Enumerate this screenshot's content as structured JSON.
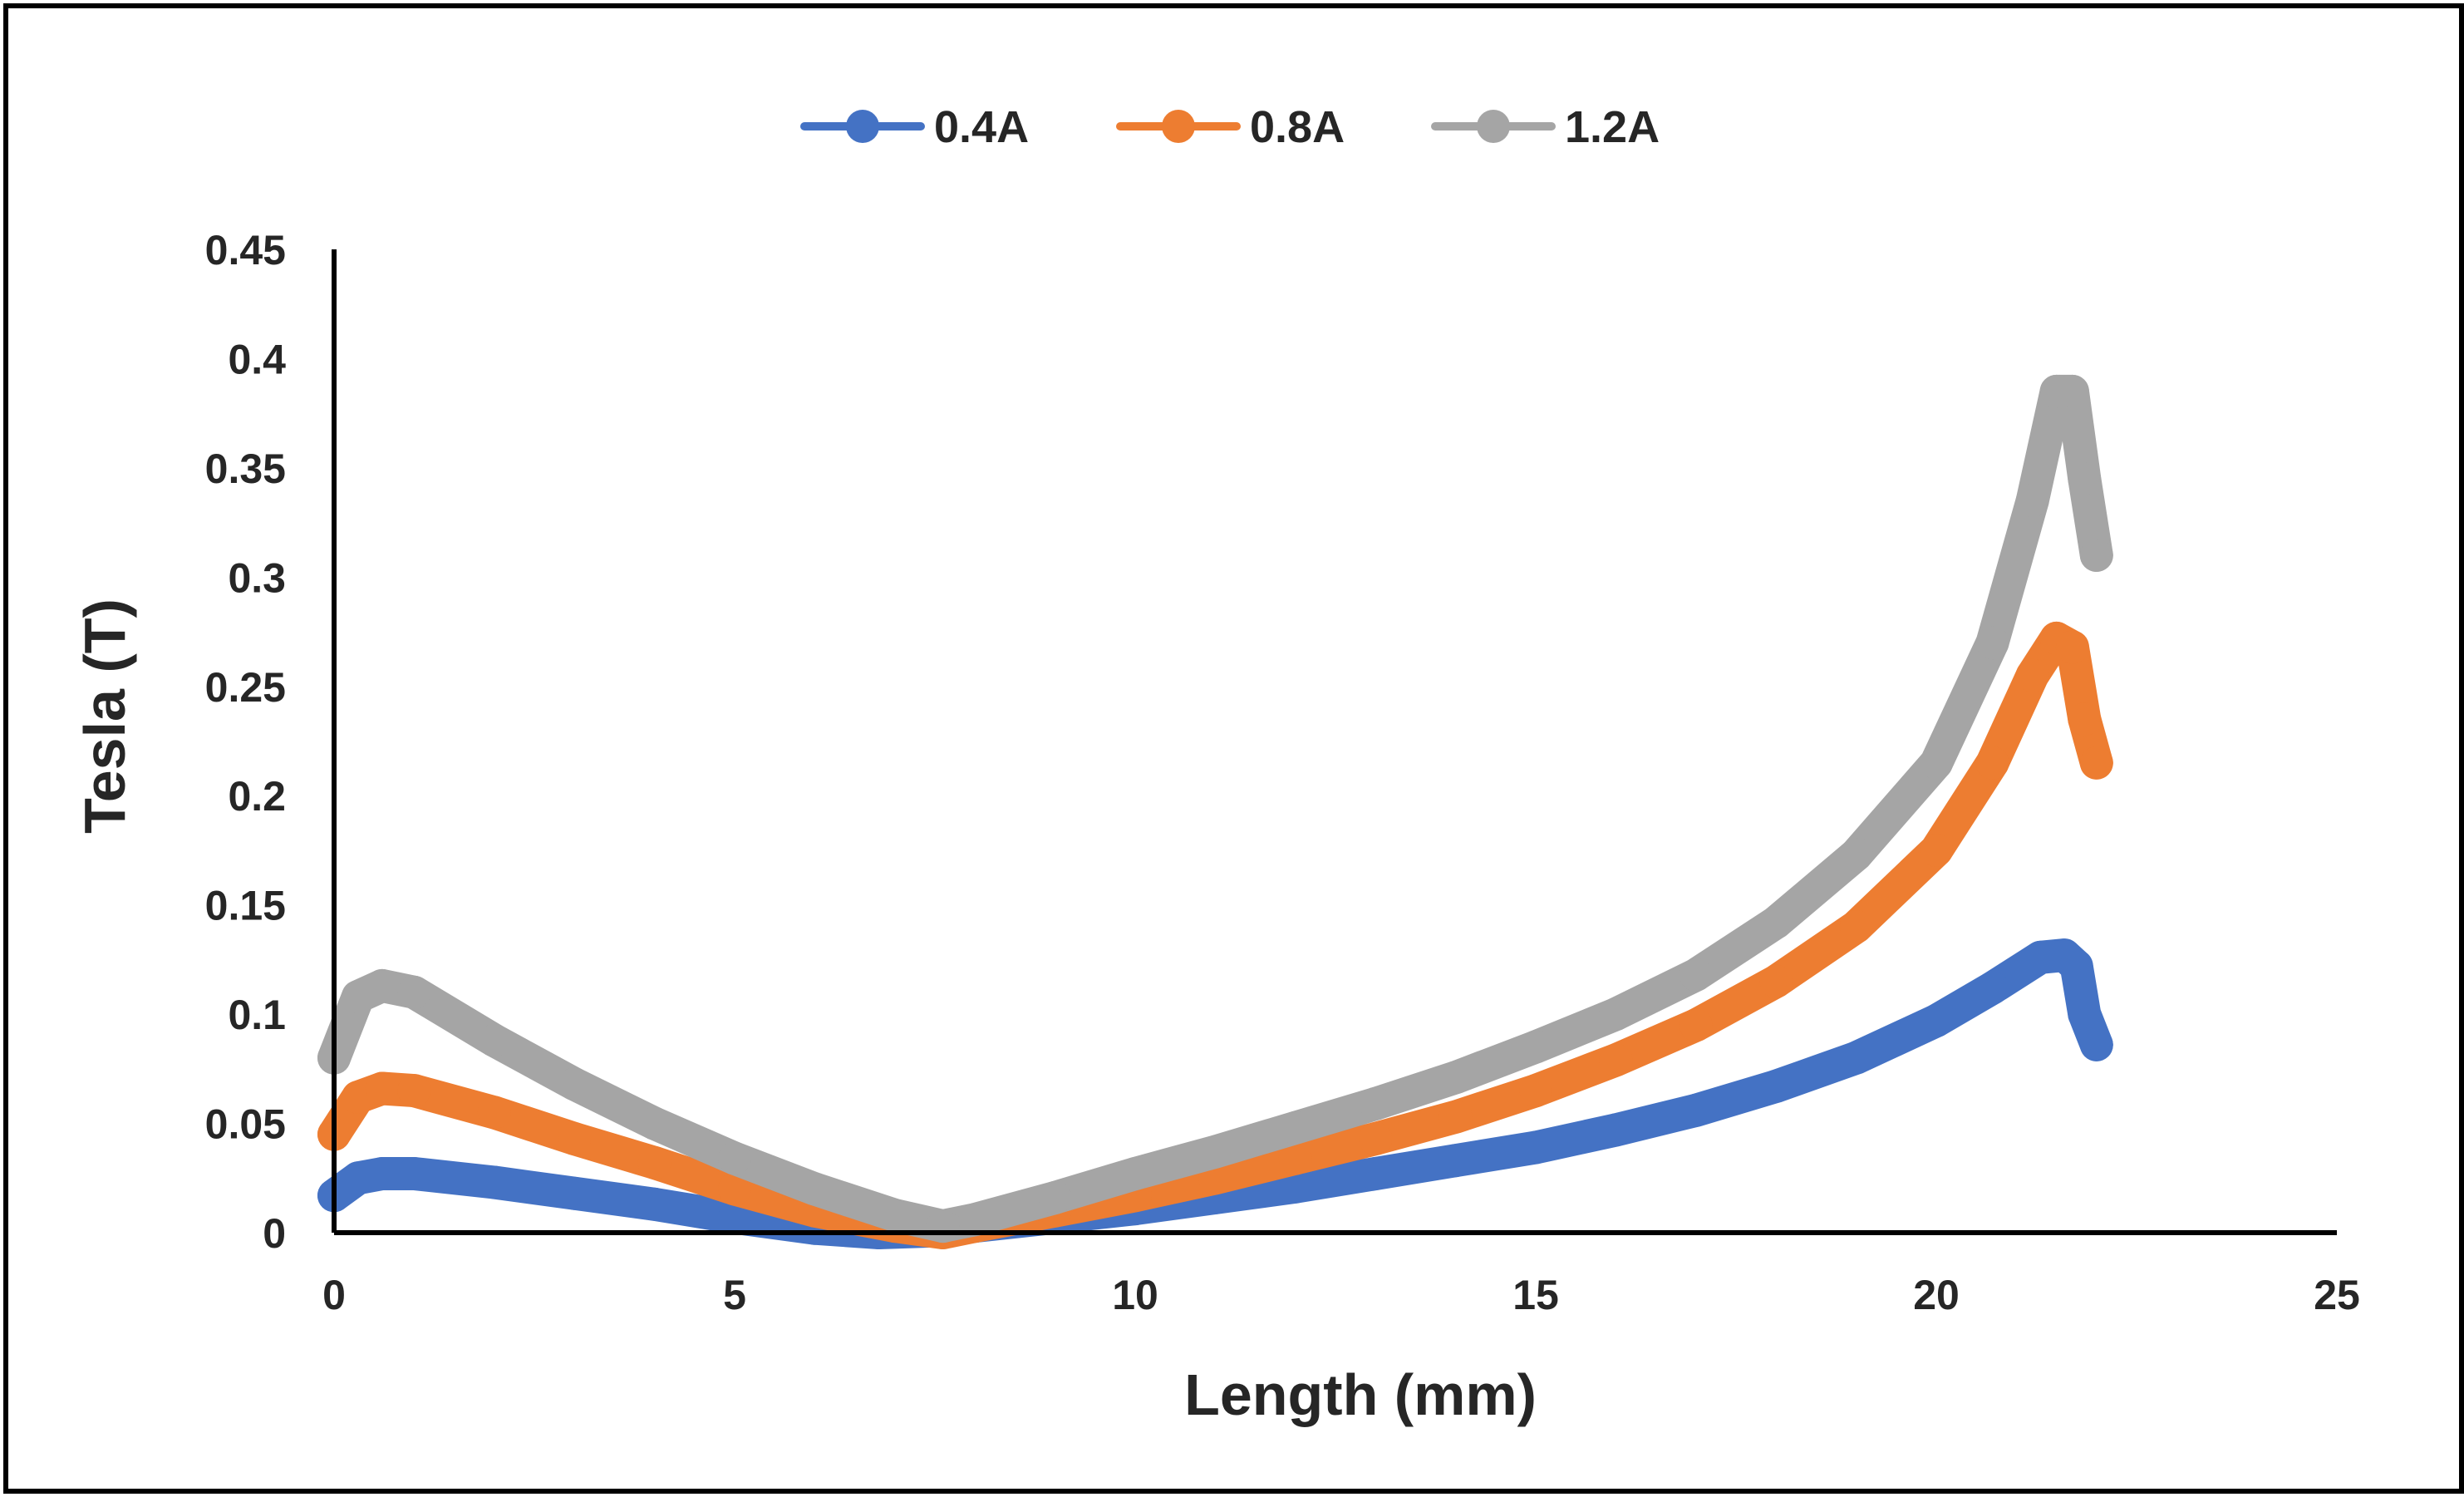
{
  "chart_data": {
    "type": "line",
    "title": "",
    "xlabel": "Length (mm)",
    "ylabel": "Tesla (T)",
    "xlim": [
      0,
      25
    ],
    "ylim": [
      0,
      0.45
    ],
    "x_ticks": [
      "0",
      "5",
      "10",
      "15",
      "20",
      "25"
    ],
    "y_ticks": [
      "0",
      "0.05",
      "0.1",
      "0.15",
      "0.2",
      "0.25",
      "0.3",
      "0.35",
      "0.4",
      "0.45"
    ],
    "grid": false,
    "legend_position": "top-center",
    "series": [
      {
        "name": "0.4A",
        "color": "#4472C4",
        "x": [
          0,
          0.3,
          0.6,
          1.0,
          2.0,
          3.0,
          4.0,
          5.0,
          6.0,
          6.8,
          7.6,
          8.0,
          9.0,
          10.0,
          11.0,
          12.0,
          13.0,
          14.0,
          15.0,
          16.0,
          17.0,
          18.0,
          19.0,
          20.0,
          20.7,
          21.3,
          21.6,
          21.75,
          21.85,
          22.0
        ],
        "y": [
          0.017,
          0.025,
          0.027,
          0.027,
          0.023,
          0.018,
          0.013,
          0.007,
          0.002,
          0.0,
          0.001,
          0.003,
          0.007,
          0.011,
          0.016,
          0.021,
          0.027,
          0.033,
          0.039,
          0.047,
          0.056,
          0.067,
          0.08,
          0.097,
          0.112,
          0.126,
          0.127,
          0.122,
          0.1,
          0.086
        ]
      },
      {
        "name": "0.8A",
        "color": "#ED7D31",
        "x": [
          0,
          0.3,
          0.6,
          1.0,
          2.0,
          3.0,
          4.0,
          5.0,
          6.0,
          7.0,
          7.6,
          8.0,
          9.0,
          10.0,
          11.0,
          12.0,
          13.0,
          14.0,
          15.0,
          16.0,
          17.0,
          18.0,
          19.0,
          20.0,
          20.7,
          21.2,
          21.5,
          21.7,
          21.85,
          22.0
        ],
        "y": [
          0.045,
          0.062,
          0.066,
          0.065,
          0.055,
          0.043,
          0.032,
          0.02,
          0.01,
          0.003,
          0.0,
          0.003,
          0.01,
          0.017,
          0.025,
          0.034,
          0.043,
          0.053,
          0.065,
          0.079,
          0.095,
          0.115,
          0.14,
          0.175,
          0.215,
          0.255,
          0.272,
          0.268,
          0.235,
          0.215
        ]
      },
      {
        "name": "1.2A",
        "color": "#A5A5A5",
        "x": [
          0,
          0.3,
          0.6,
          1.0,
          2.0,
          3.0,
          4.0,
          5.0,
          6.0,
          7.0,
          7.6,
          8.0,
          9.0,
          10.0,
          11.0,
          12.0,
          13.0,
          14.0,
          15.0,
          16.0,
          17.0,
          18.0,
          19.0,
          20.0,
          20.7,
          21.2,
          21.5,
          21.7,
          21.85,
          22.0
        ],
        "y": [
          0.08,
          0.108,
          0.113,
          0.11,
          0.088,
          0.068,
          0.05,
          0.034,
          0.02,
          0.008,
          0.003,
          0.006,
          0.016,
          0.027,
          0.037,
          0.048,
          0.059,
          0.071,
          0.085,
          0.1,
          0.118,
          0.142,
          0.173,
          0.215,
          0.27,
          0.335,
          0.385,
          0.385,
          0.345,
          0.31
        ]
      }
    ]
  }
}
